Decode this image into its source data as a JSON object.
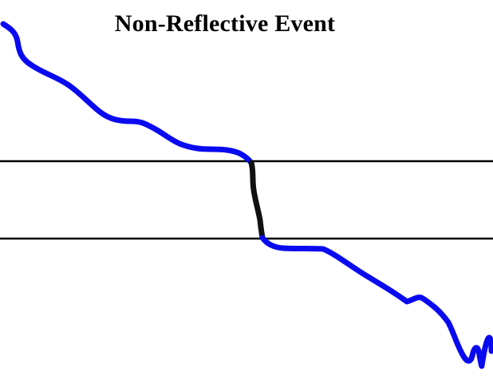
{
  "diagram": {
    "title": "Non-Reflective Event"
  },
  "colors": {
    "background": "#ffffff",
    "trace": "#0a0af0",
    "event": "#111111",
    "guide_lines": "#000000",
    "title": "#000000"
  }
}
